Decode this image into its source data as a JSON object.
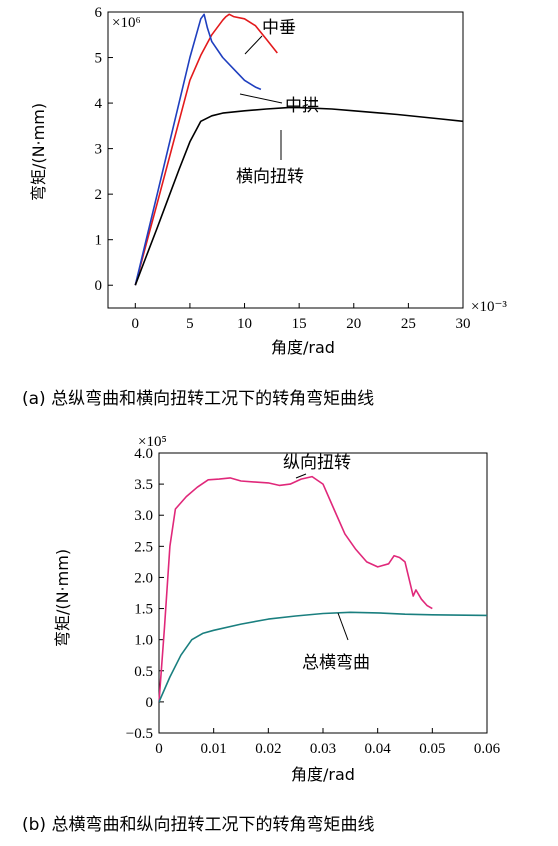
{
  "chart_data": [
    {
      "type": "line",
      "caption": "(a) 总纵弯曲和横向扭转工况下的转角弯矩曲线",
      "xlabel": "角度/rad",
      "ylabel": "弯矩/(N·mm)",
      "x_multiplier": "×10⁻³",
      "y_multiplier": "×10⁶",
      "xlim": [
        -2.5,
        30
      ],
      "ylim": [
        -0.5,
        6
      ],
      "xticks": [
        0,
        5,
        10,
        15,
        20,
        25,
        30
      ],
      "yticks": [
        0,
        1,
        2,
        3,
        4,
        5,
        6
      ],
      "grid": false,
      "series": [
        {
          "name": "中垂",
          "color": "#e31a1c",
          "points": [
            [
              0,
              0
            ],
            [
              1,
              0.9
            ],
            [
              2,
              1.8
            ],
            [
              3,
              2.7
            ],
            [
              4,
              3.6
            ],
            [
              5,
              4.5
            ],
            [
              6,
              5.05
            ],
            [
              7,
              5.5
            ],
            [
              8,
              5.82
            ],
            [
              8.3,
              5.9
            ],
            [
              8.6,
              5.95
            ],
            [
              9,
              5.9
            ],
            [
              10,
              5.85
            ],
            [
              11,
              5.7
            ],
            [
              12,
              5.4
            ],
            [
              13,
              5.1
            ]
          ]
        },
        {
          "name": "中拱",
          "color": "#1f3fbf",
          "points": [
            [
              0,
              0
            ],
            [
              1,
              1.0
            ],
            [
              2,
              2.0
            ],
            [
              3,
              3.0
            ],
            [
              4,
              4.0
            ],
            [
              5,
              5.0
            ],
            [
              5.7,
              5.6
            ],
            [
              6,
              5.85
            ],
            [
              6.3,
              5.95
            ],
            [
              6.6,
              5.65
            ],
            [
              7,
              5.35
            ],
            [
              8,
              5.0
            ],
            [
              9,
              4.75
            ],
            [
              10,
              4.5
            ],
            [
              11,
              4.35
            ],
            [
              11.5,
              4.3
            ]
          ]
        },
        {
          "name": "横向扭转",
          "color": "#000000",
          "points": [
            [
              0,
              0
            ],
            [
              1,
              0.63
            ],
            [
              2,
              1.26
            ],
            [
              3,
              1.9
            ],
            [
              4,
              2.54
            ],
            [
              5,
              3.15
            ],
            [
              6,
              3.6
            ],
            [
              7,
              3.72
            ],
            [
              8,
              3.78
            ],
            [
              10,
              3.83
            ],
            [
              12,
              3.87
            ],
            [
              14,
              3.9
            ],
            [
              15,
              3.9
            ],
            [
              18,
              3.87
            ],
            [
              20,
              3.83
            ],
            [
              24,
              3.75
            ],
            [
              28,
              3.65
            ],
            [
              30,
              3.6
            ]
          ]
        }
      ]
    },
    {
      "type": "line",
      "caption": "(b) 总横弯曲和纵向扭转工况下的转角弯矩曲线",
      "xlabel": "角度/rad",
      "ylabel": "弯矩/(N·mm)",
      "y_multiplier": "×10⁵",
      "xlim": [
        0,
        0.06
      ],
      "ylim": [
        -0.5,
        4.0
      ],
      "xticks": [
        0,
        0.01,
        0.02,
        0.03,
        0.04,
        0.05,
        0.06
      ],
      "yticks": [
        -0.5,
        0,
        0.5,
        1.0,
        1.5,
        2.0,
        2.5,
        3.0,
        3.5,
        4.0
      ],
      "grid": false,
      "series": [
        {
          "name": "纵向扭转",
          "color": "#e0287a",
          "points": [
            [
              0,
              0
            ],
            [
              0.001,
              1.2
            ],
            [
              0.002,
              2.5
            ],
            [
              0.003,
              3.1
            ],
            [
              0.005,
              3.3
            ],
            [
              0.007,
              3.45
            ],
            [
              0.009,
              3.57
            ],
            [
              0.011,
              3.58
            ],
            [
              0.013,
              3.6
            ],
            [
              0.015,
              3.55
            ],
            [
              0.018,
              3.53
            ],
            [
              0.02,
              3.52
            ],
            [
              0.022,
              3.48
            ],
            [
              0.024,
              3.5
            ],
            [
              0.026,
              3.58
            ],
            [
              0.028,
              3.62
            ],
            [
              0.03,
              3.5
            ],
            [
              0.032,
              3.1
            ],
            [
              0.034,
              2.7
            ],
            [
              0.036,
              2.45
            ],
            [
              0.038,
              2.25
            ],
            [
              0.04,
              2.17
            ],
            [
              0.042,
              2.22
            ],
            [
              0.043,
              2.35
            ],
            [
              0.044,
              2.32
            ],
            [
              0.045,
              2.25
            ],
            [
              0.0465,
              1.7
            ],
            [
              0.047,
              1.8
            ],
            [
              0.048,
              1.65
            ],
            [
              0.049,
              1.55
            ],
            [
              0.05,
              1.5
            ]
          ]
        },
        {
          "name": "总横弯曲",
          "color": "#1a7f7f",
          "points": [
            [
              0,
              0
            ],
            [
              0.002,
              0.4
            ],
            [
              0.004,
              0.75
            ],
            [
              0.006,
              1.0
            ],
            [
              0.008,
              1.1
            ],
            [
              0.01,
              1.15
            ],
            [
              0.015,
              1.25
            ],
            [
              0.02,
              1.33
            ],
            [
              0.025,
              1.38
            ],
            [
              0.03,
              1.42
            ],
            [
              0.035,
              1.44
            ],
            [
              0.04,
              1.43
            ],
            [
              0.045,
              1.41
            ],
            [
              0.05,
              1.4
            ],
            [
              0.06,
              1.39
            ]
          ]
        }
      ]
    }
  ]
}
